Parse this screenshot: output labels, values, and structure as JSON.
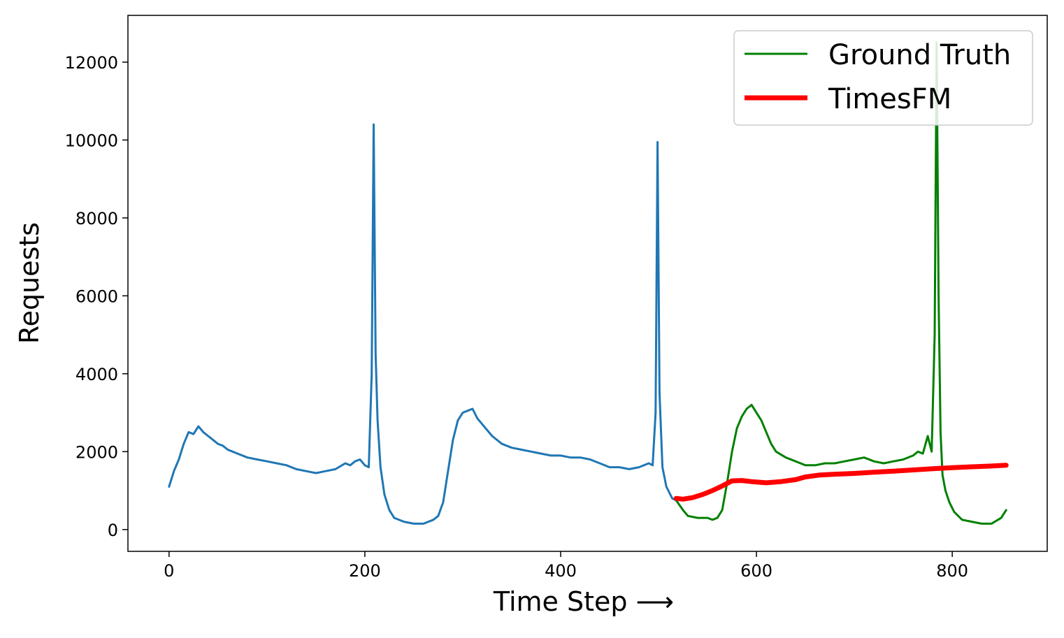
{
  "chart_data": {
    "type": "line",
    "title": "",
    "xlabel": "Time Step ⟶",
    "ylabel": "Requests",
    "xlim": [
      -42,
      897
    ],
    "ylim": [
      -560,
      13200
    ],
    "xticks": [
      0,
      200,
      400,
      600,
      800
    ],
    "yticks": [
      0,
      2000,
      4000,
      6000,
      8000,
      10000,
      12000
    ],
    "grid": false,
    "legend_position": "top-right",
    "colors": {
      "history": "#1f77b4",
      "ground_truth": "#008000",
      "forecast": "#ff0000"
    },
    "series": [
      {
        "key": "history",
        "color": "#1f77b4",
        "x": [
          0,
          5,
          10,
          15,
          20,
          25,
          30,
          35,
          40,
          45,
          50,
          55,
          60,
          65,
          70,
          80,
          90,
          100,
          110,
          120,
          130,
          140,
          150,
          160,
          170,
          180,
          185,
          190,
          195,
          200,
          204,
          207,
          209,
          211,
          213,
          216,
          220,
          225,
          230,
          240,
          250,
          260,
          270,
          275,
          280,
          285,
          290,
          295,
          300,
          305,
          310,
          315,
          320,
          330,
          340,
          350,
          360,
          370,
          380,
          390,
          400,
          410,
          420,
          430,
          440,
          450,
          460,
          470,
          480,
          490,
          494,
          497,
          499,
          501,
          504,
          508,
          514,
          518
        ],
        "y": [
          1100,
          1500,
          1800,
          2200,
          2500,
          2450,
          2650,
          2500,
          2400,
          2300,
          2200,
          2150,
          2050,
          2000,
          1950,
          1850,
          1800,
          1750,
          1700,
          1650,
          1550,
          1500,
          1450,
          1500,
          1550,
          1700,
          1650,
          1750,
          1800,
          1650,
          1600,
          4000,
          10400,
          4500,
          2800,
          1600,
          900,
          500,
          300,
          200,
          150,
          150,
          250,
          350,
          700,
          1500,
          2300,
          2800,
          3000,
          3050,
          3100,
          2850,
          2700,
          2400,
          2200,
          2100,
          2050,
          2000,
          1950,
          1900,
          1900,
          1850,
          1850,
          1800,
          1700,
          1600,
          1600,
          1550,
          1600,
          1700,
          1650,
          3000,
          9950,
          3500,
          1600,
          1100,
          800,
          750
        ]
      },
      {
        "key": "ground_truth",
        "name": "Ground Truth",
        "color": "#008000",
        "x": [
          518,
          525,
          530,
          540,
          550,
          555,
          560,
          565,
          570,
          575,
          580,
          585,
          590,
          595,
          600,
          605,
          610,
          615,
          620,
          630,
          640,
          650,
          660,
          670,
          680,
          690,
          700,
          710,
          720,
          730,
          740,
          750,
          760,
          765,
          770,
          775,
          779,
          782,
          784,
          786,
          788,
          790,
          793,
          797,
          802,
          810,
          820,
          830,
          840,
          850,
          855
        ],
        "y": [
          750,
          500,
          350,
          300,
          300,
          250,
          300,
          500,
          1200,
          2000,
          2600,
          2900,
          3100,
          3200,
          3000,
          2800,
          2500,
          2200,
          2000,
          1850,
          1750,
          1650,
          1650,
          1700,
          1700,
          1750,
          1800,
          1850,
          1750,
          1700,
          1750,
          1800,
          1900,
          2000,
          1950,
          2400,
          2000,
          5000,
          12500,
          6000,
          2500,
          1400,
          1000,
          700,
          450,
          250,
          200,
          150,
          150,
          300,
          500
        ]
      },
      {
        "key": "forecast",
        "name": "TimesFM",
        "color": "#ff0000",
        "x": [
          518,
          525,
          535,
          545,
          555,
          565,
          575,
          585,
          595,
          610,
          625,
          640,
          650,
          665,
          680,
          700,
          720,
          740,
          760,
          780,
          800,
          820,
          840,
          855
        ],
        "y": [
          800,
          780,
          820,
          900,
          1000,
          1120,
          1250,
          1260,
          1230,
          1200,
          1230,
          1280,
          1350,
          1400,
          1420,
          1440,
          1470,
          1500,
          1530,
          1560,
          1590,
          1610,
          1630,
          1650
        ]
      }
    ]
  }
}
